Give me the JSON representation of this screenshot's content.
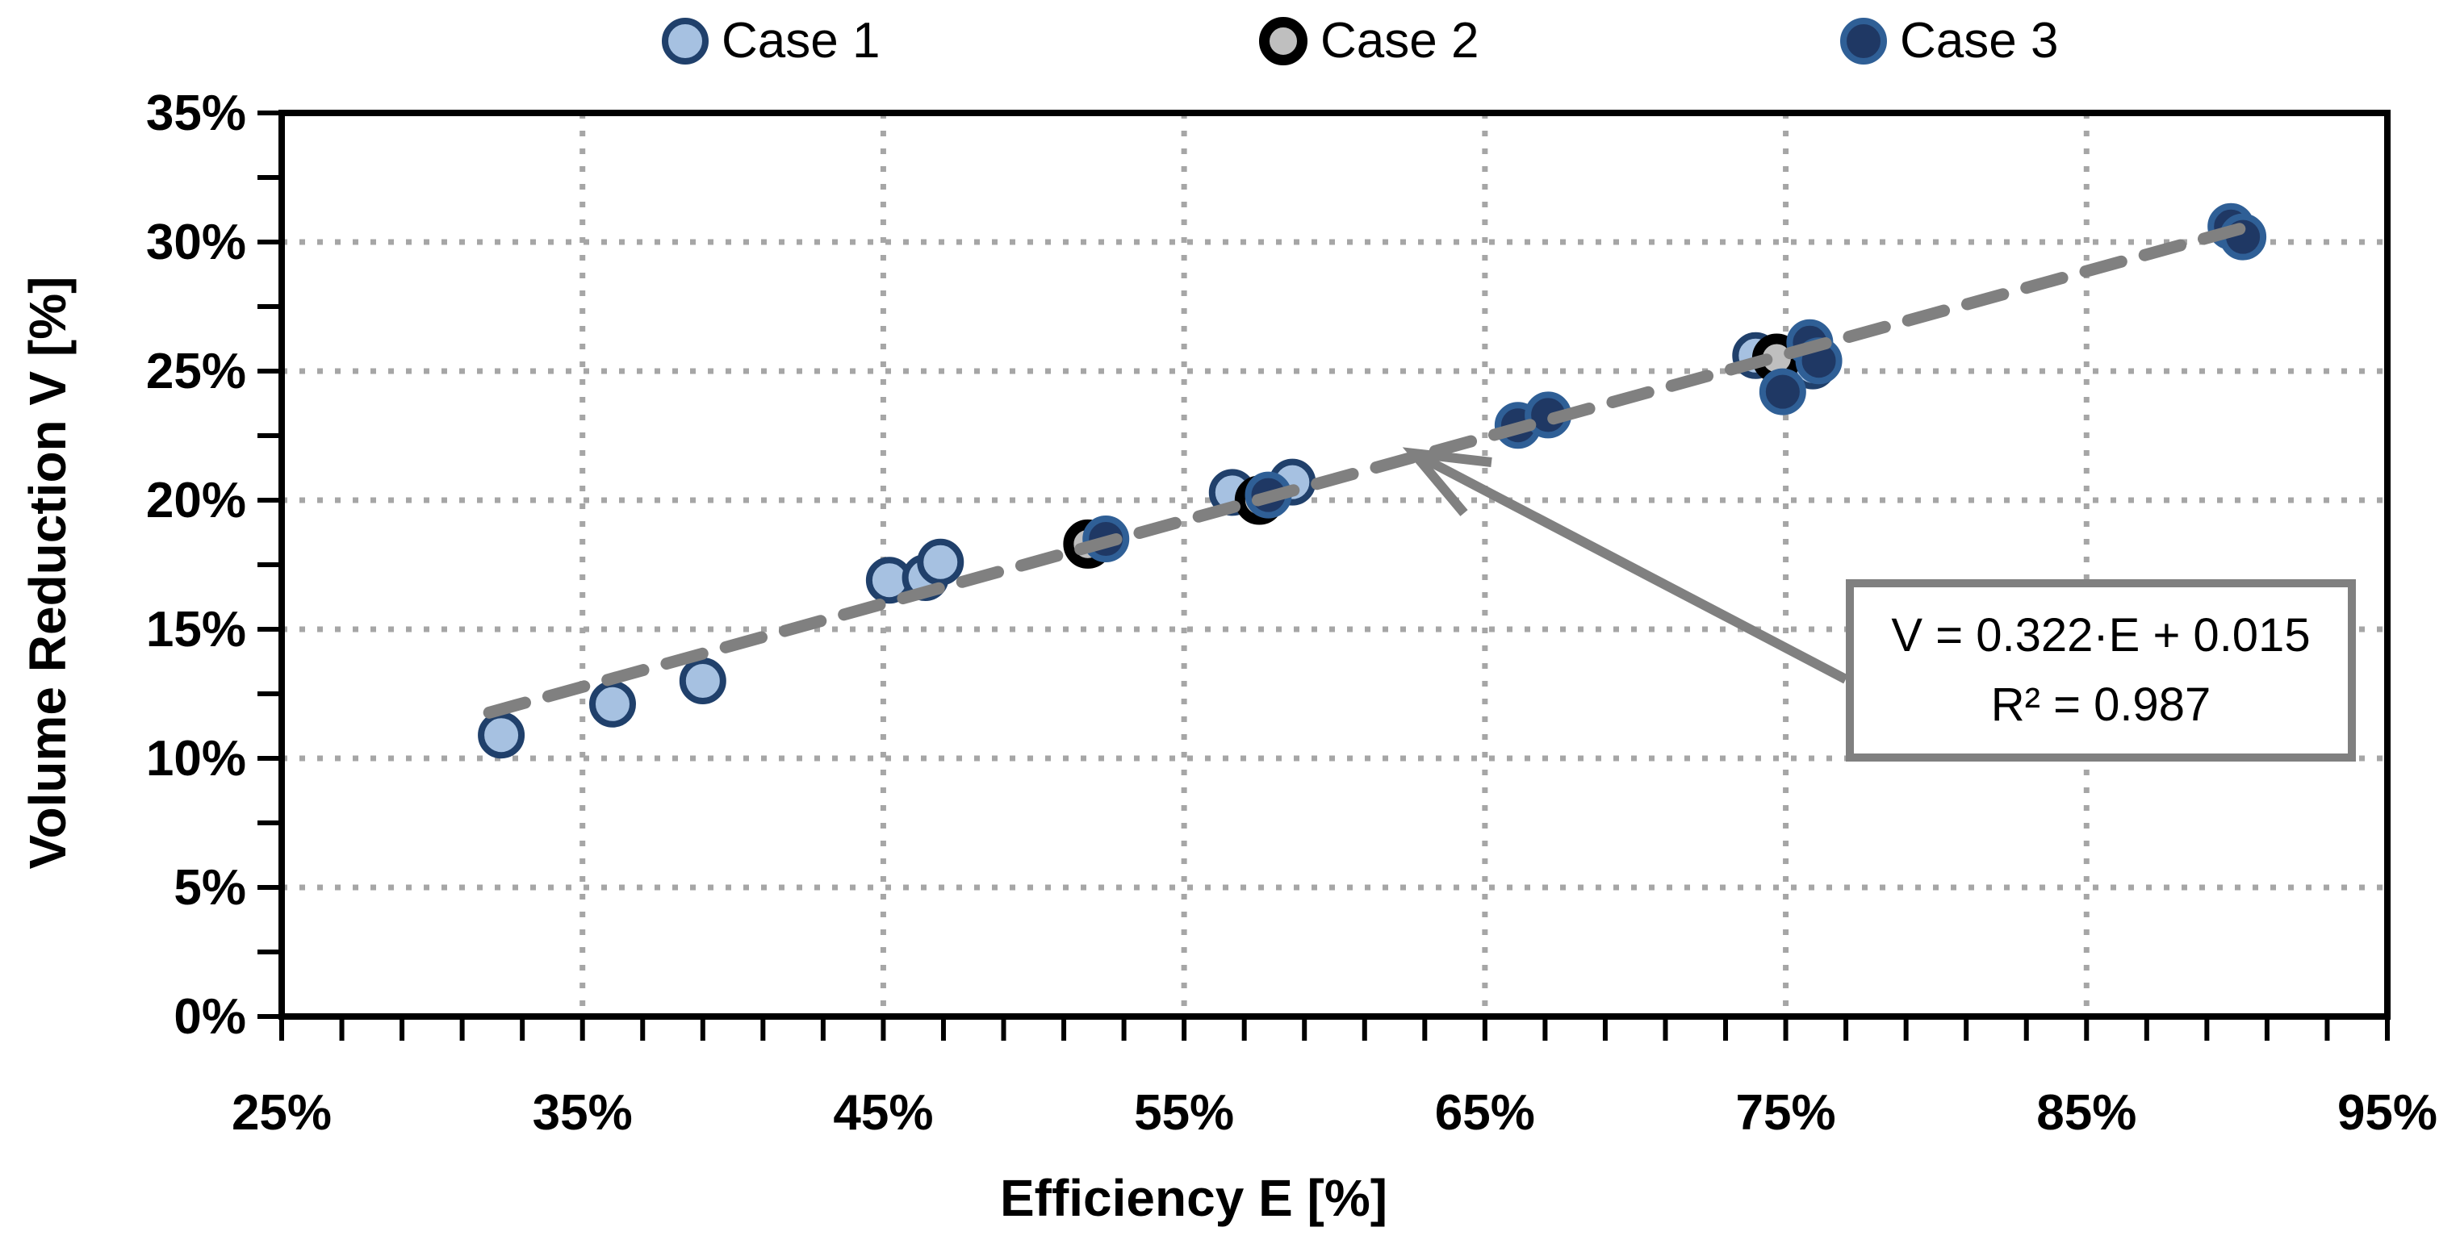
{
  "colors": {
    "case1_fill": "#a6c1e1",
    "case1_border": "#20406b",
    "case2_fill": "#bfbfbf",
    "case2_border": "#000000",
    "case3_fill": "#1f3864",
    "case3_border": "#2f5f96",
    "gridline": "#a6a6a6",
    "axis": "#000000",
    "trendline": "#808080"
  },
  "legend": {
    "items": [
      {
        "label": "Case 1"
      },
      {
        "label": "Case 2"
      },
      {
        "label": "Case 3"
      }
    ]
  },
  "chart_data": {
    "type": "scatter",
    "title": "",
    "xlabel": "Efficiency E [%]",
    "ylabel": "Volume Reduction V [%]",
    "xlim": [
      25,
      95
    ],
    "ylim": [
      0,
      35
    ],
    "x_tick_labels": [
      "25%",
      "35%",
      "45%",
      "55%",
      "65%",
      "75%",
      "85%",
      "95%"
    ],
    "x_tick_values": [
      25,
      35,
      45,
      55,
      65,
      75,
      85,
      95
    ],
    "x_minor_step": 2,
    "y_tick_labels": [
      "0%",
      "5%",
      "10%",
      "15%",
      "20%",
      "25%",
      "30%",
      "35%"
    ],
    "y_tick_values": [
      0,
      5,
      10,
      15,
      20,
      25,
      30,
      35
    ],
    "y_minor_step": 2.5,
    "grid_x_values": [
      35,
      45,
      55,
      65,
      75,
      85
    ],
    "grid_y_values": [
      5,
      10,
      15,
      20,
      25,
      30
    ],
    "series": [
      {
        "name": "Case 1",
        "points": [
          [
            32.3,
            10.9
          ],
          [
            36.0,
            12.1
          ],
          [
            39.0,
            13.0
          ],
          [
            45.2,
            16.9
          ],
          [
            46.4,
            17.0
          ],
          [
            46.9,
            17.6
          ],
          [
            56.6,
            20.3
          ],
          [
            58.6,
            20.7
          ],
          [
            74.0,
            25.6
          ],
          [
            75.9,
            25.2
          ]
        ]
      },
      {
        "name": "Case 2",
        "points": [
          [
            51.8,
            18.3
          ],
          [
            57.5,
            20.0
          ],
          [
            74.7,
            25.5
          ]
        ]
      },
      {
        "name": "Case 3",
        "points": [
          [
            52.4,
            18.5
          ],
          [
            57.8,
            20.2
          ],
          [
            66.1,
            22.9
          ],
          [
            67.1,
            23.3
          ],
          [
            74.9,
            24.2
          ],
          [
            75.8,
            26.1
          ],
          [
            76.1,
            25.4
          ],
          [
            89.8,
            30.6
          ],
          [
            90.2,
            30.2
          ]
        ]
      }
    ],
    "trendline": {
      "equation": "V = 0.322·E + 0.015",
      "r2": "R² = 0.987",
      "slope": 0.322,
      "intercept_pct": 1.5,
      "x_start": 31.9,
      "x_end": 90.6
    }
  }
}
